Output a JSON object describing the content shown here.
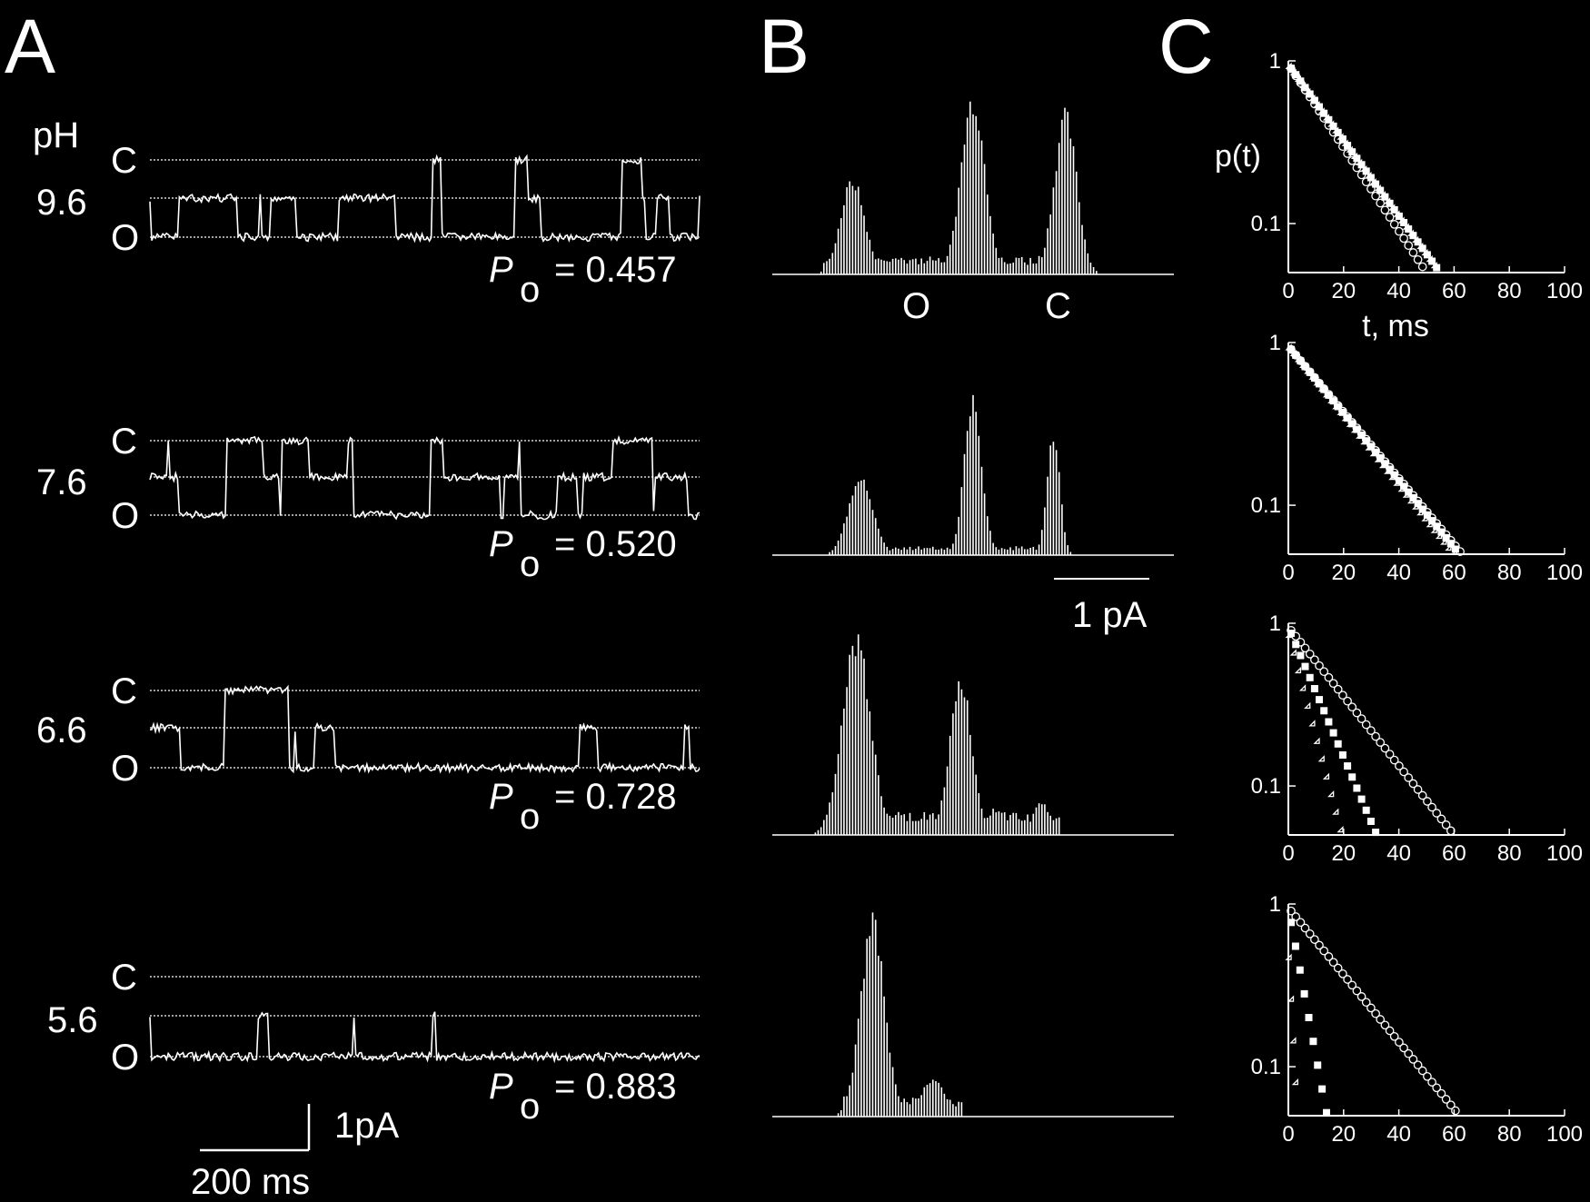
{
  "panel_labels": [
    "A",
    "B",
    "C"
  ],
  "panel_a": {
    "ph_header": "pH",
    "level_labels": {
      "closed": "C",
      "open": "O"
    },
    "po_symbol": "P",
    "po_subscript": "o",
    "traces": [
      {
        "ph": "9.6",
        "po_text": "= 0.457",
        "po": 0.457
      },
      {
        "ph": "7.6",
        "po_text": "= 0.520",
        "po": 0.52
      },
      {
        "ph": "6.6",
        "po_text": "= 0.728",
        "po": 0.728
      },
      {
        "ph": "5.6",
        "po_text": "= 0.883",
        "po": 0.883
      }
    ],
    "scale_bar": {
      "current": "1pA",
      "time": "200 ms"
    }
  },
  "panel_b": {
    "x_labels": {
      "open": "O",
      "closed": "C"
    },
    "scale_bar_label": "1 pA",
    "histograms": [
      {
        "peaks": [
          {
            "pos": 0.2,
            "height": 0.53,
            "width": 0.03
          },
          {
            "pos": 0.5,
            "height": 1.0,
            "width": 0.03
          },
          {
            "pos": 0.73,
            "height": 0.9,
            "width": 0.028
          }
        ],
        "floor": 0.08
      },
      {
        "peaks": [
          {
            "pos": 0.22,
            "height": 0.46,
            "width": 0.03
          },
          {
            "pos": 0.5,
            "height": 0.88,
            "width": 0.022
          },
          {
            "pos": 0.7,
            "height": 0.7,
            "width": 0.016
          }
        ],
        "floor": 0.04
      },
      {
        "peaks": [
          {
            "pos": 0.21,
            "height": 1.0,
            "width": 0.035
          },
          {
            "pos": 0.47,
            "height": 0.78,
            "width": 0.028
          },
          {
            "pos": 0.67,
            "height": 0.17,
            "width": 0.02
          }
        ],
        "floor": 0.1
      },
      {
        "peaks": [
          {
            "pos": 0.25,
            "height": 1.0,
            "width": 0.03
          },
          {
            "pos": 0.4,
            "height": 0.19,
            "width": 0.03
          }
        ],
        "floor": 0.08
      }
    ]
  },
  "chart_data": {
    "type": "scatter",
    "panel": "C",
    "ylabel": "p(t)",
    "xlabel": "t, ms",
    "y_scale": "log",
    "xlim": [
      0,
      100
    ],
    "ylim": [
      0.05,
      1
    ],
    "x_ticks": [
      "0",
      "20",
      "40",
      "60",
      "80",
      "100"
    ],
    "y_ticks": [
      "1",
      "0.1"
    ],
    "plots": [
      {
        "series": [
          {
            "marker": "circle",
            "x_end": 50
          },
          {
            "marker": "triangle",
            "x_end": 55
          },
          {
            "marker": "square",
            "x_end": 55
          }
        ]
      },
      {
        "series": [
          {
            "marker": "circle",
            "x_end": 63
          },
          {
            "marker": "triangle",
            "x_end": 60
          },
          {
            "marker": "square",
            "x_end": 62
          }
        ]
      },
      {
        "series": [
          {
            "marker": "circle",
            "x_end": 60
          },
          {
            "marker": "square",
            "x_end": 32
          },
          {
            "marker": "triangle",
            "x_end": 20
          }
        ]
      },
      {
        "series": [
          {
            "marker": "circle",
            "x_end": 62
          },
          {
            "marker": "square",
            "x_end": 14
          },
          {
            "marker": "triangle",
            "x_end": 4
          }
        ]
      }
    ]
  }
}
